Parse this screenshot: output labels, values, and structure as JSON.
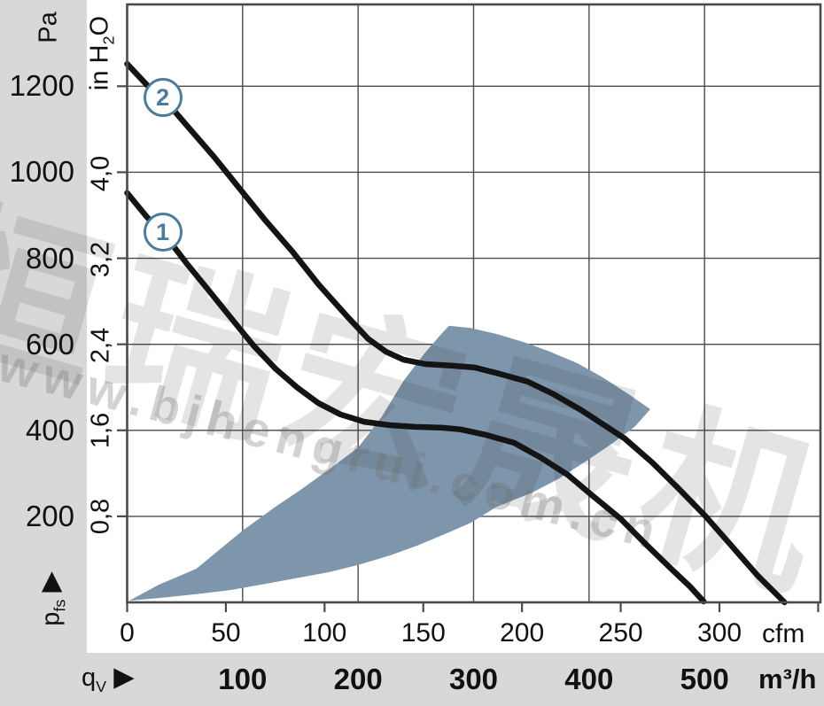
{
  "units": {
    "pressure_primary": "Pa",
    "pressure_secondary_pre": "in H",
    "pressure_secondary_sub": "2",
    "pressure_secondary_post": "O",
    "flow_primary": "cfm",
    "flow_secondary": "m³/h"
  },
  "axis_symbols": {
    "flow_main": "q",
    "flow_sub": "V",
    "pressure_main": "p",
    "pressure_sub": "fs",
    "arrow_glyph": "▶"
  },
  "watermark": {
    "cjk": "恒瑞宏晟机电",
    "url": "www.bjhengrui.com.cn"
  },
  "colors": {
    "region_blue": "#7E96AC",
    "curve_black": "#141414",
    "badge_blue": "#4B7C9B",
    "panel_gray": "#D8D8D8",
    "grid_gray": "#4A4A4A",
    "text": "#111111"
  },
  "chart_data": {
    "type": "line",
    "title": "",
    "xlabel": "qV",
    "ylabel": "pfs",
    "grid": "on",
    "legend": "numbered circles on curves",
    "x_axis": {
      "primary_unit": "cfm",
      "primary_ticks": [
        0,
        50,
        100,
        150,
        200,
        250,
        300
      ],
      "extra_unlabeled_tick_cfm": 350,
      "secondary_unit": "m³/h",
      "secondary_ticks": [
        100,
        200,
        300,
        400,
        500
      ],
      "xlim_cfm": [
        0,
        351
      ]
    },
    "y_axis": {
      "primary_unit": "Pa",
      "primary_ticks": [
        200,
        400,
        600,
        800,
        1000,
        1200
      ],
      "secondary_unit": "in H2O",
      "secondary_tick_labels": [
        "0,8",
        "1,6",
        "2,4",
        "3,2",
        "4,0"
      ],
      "pa_per_inh2o": 249.089,
      "ylim_pa": [
        0,
        1390
      ]
    },
    "series": [
      {
        "name": "1",
        "label_anchor_cfm_pa": [
          18,
          861
        ],
        "points_cfm_pa": [
          [
            0,
            952
          ],
          [
            10,
            896
          ],
          [
            19,
            855
          ],
          [
            30,
            789
          ],
          [
            41,
            727
          ],
          [
            53,
            659
          ],
          [
            64,
            597
          ],
          [
            75,
            544
          ],
          [
            86,
            500
          ],
          [
            97,
            463
          ],
          [
            108,
            437
          ],
          [
            120,
            420
          ],
          [
            133,
            412
          ],
          [
            146,
            408
          ],
          [
            160,
            406
          ],
          [
            169,
            402
          ],
          [
            182,
            389
          ],
          [
            196,
            371
          ],
          [
            209,
            338
          ],
          [
            223,
            297
          ],
          [
            236,
            247
          ],
          [
            250,
            194
          ],
          [
            263,
            134
          ],
          [
            276,
            76
          ],
          [
            285,
            37
          ],
          [
            292,
            2
          ]
        ]
      },
      {
        "name": "2",
        "label_anchor_cfm_pa": [
          18,
          1174
        ],
        "points_cfm_pa": [
          [
            0,
            1252
          ],
          [
            10,
            1203
          ],
          [
            18,
            1174
          ],
          [
            30,
            1110
          ],
          [
            44,
            1036
          ],
          [
            57,
            962
          ],
          [
            70,
            888
          ],
          [
            84,
            814
          ],
          [
            97,
            739
          ],
          [
            111,
            667
          ],
          [
            122,
            613
          ],
          [
            131,
            583
          ],
          [
            140,
            564
          ],
          [
            151,
            554
          ],
          [
            165,
            550
          ],
          [
            176,
            546
          ],
          [
            189,
            531
          ],
          [
            203,
            513
          ],
          [
            216,
            484
          ],
          [
            230,
            447
          ],
          [
            243,
            408
          ],
          [
            252,
            381
          ],
          [
            266,
            325
          ],
          [
            279,
            266
          ],
          [
            293,
            200
          ],
          [
            306,
            132
          ],
          [
            319,
            64
          ],
          [
            333,
            0
          ]
        ]
      }
    ],
    "operating_region_cfm_pa": [
      [
        1,
        4
      ],
      [
        16,
        41
      ],
      [
        35,
        78
      ],
      [
        58,
        165
      ],
      [
        75,
        222
      ],
      [
        88,
        262
      ],
      [
        104,
        315
      ],
      [
        117,
        360
      ],
      [
        129,
        432
      ],
      [
        140,
        515
      ],
      [
        151,
        581
      ],
      [
        158,
        618
      ],
      [
        163,
        643
      ],
      [
        174,
        638
      ],
      [
        187,
        624
      ],
      [
        201,
        605
      ],
      [
        214,
        583
      ],
      [
        228,
        556
      ],
      [
        241,
        523
      ],
      [
        254,
        484
      ],
      [
        265,
        449
      ],
      [
        257,
        408
      ],
      [
        245,
        367
      ],
      [
        232,
        327
      ],
      [
        218,
        286
      ],
      [
        205,
        255
      ],
      [
        187,
        222
      ],
      [
        174,
        185
      ],
      [
        160,
        157
      ],
      [
        147,
        132
      ],
      [
        133,
        109
      ],
      [
        117,
        87
      ],
      [
        102,
        70
      ],
      [
        88,
        58
      ],
      [
        70,
        43
      ],
      [
        53,
        29
      ],
      [
        35,
        19
      ],
      [
        16,
        10
      ]
    ]
  }
}
